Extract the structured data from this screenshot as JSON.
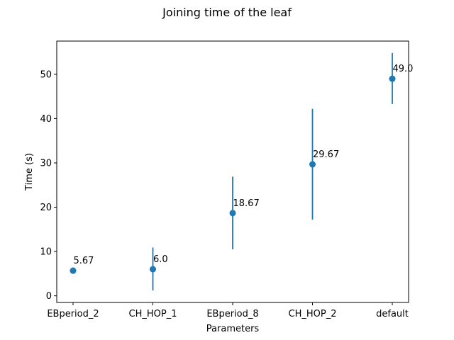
{
  "chart_data": {
    "type": "scatter",
    "title": "Joining time of the leaf",
    "xlabel": "Parameters",
    "ylabel": "Time (s)",
    "categories": [
      "EBperiod_2",
      "CH_HOP_1",
      "EBperiod_8",
      "CH_HOP_2",
      "default"
    ],
    "values": [
      5.67,
      6.0,
      18.67,
      29.67,
      49.0
    ],
    "value_labels": [
      "5.67",
      "6.0",
      "18.67",
      "29.67",
      "49.0"
    ],
    "error_low": [
      5.0,
      1.2,
      10.5,
      17.2,
      43.3
    ],
    "error_high": [
      6.4,
      10.9,
      26.9,
      42.2,
      54.8
    ],
    "ylim": [
      -1.5,
      57.5
    ],
    "yticks": [
      0,
      10,
      20,
      30,
      40,
      50
    ],
    "ytick_labels": [
      "0",
      "10",
      "20",
      "30",
      "40",
      "50"
    ],
    "grid": false,
    "color": "#1f77b4"
  }
}
